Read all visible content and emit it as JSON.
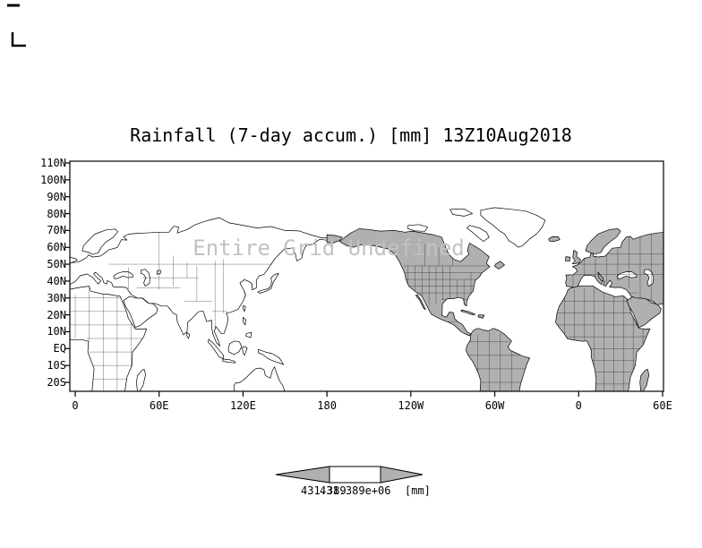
{
  "title": "Rainfall (7-day accum.) [mm] 13Z10Aug2018",
  "watermark": "Entire Grid Undefined",
  "axes": {
    "lat_labels": [
      "110N",
      "100N",
      "90N",
      "80N",
      "70N",
      "60N",
      "50N",
      "40N",
      "30N",
      "20N",
      "10N",
      "EQ",
      "10S",
      "20S"
    ],
    "lon_labels": [
      "0",
      "60E",
      "120E",
      "180",
      "120W",
      "60W",
      "0",
      "60E"
    ]
  },
  "colorbar": {
    "labels": [
      "431.389",
      "431.389e+06"
    ],
    "unit": "[mm]"
  },
  "colors": {
    "land_shaded": "#b0b0b0",
    "land_unshaded": "#ffffff",
    "outline": "#000000",
    "watermark": "#c2c2c2"
  },
  "chart_data": {
    "type": "map",
    "title": "Rainfall (7-day accum.) [mm] 13Z10Aug2018",
    "variable": "Rainfall (7-day accum.)",
    "unit": "[mm]",
    "valid_time": "13Z10Aug2018",
    "status": "Entire Grid Undefined",
    "projection": "latlon",
    "lat_ticks": [
      "110N",
      "100N",
      "90N",
      "80N",
      "70N",
      "60N",
      "50N",
      "40N",
      "30N",
      "20N",
      "10N",
      "EQ",
      "10S",
      "20S"
    ],
    "lon_ticks": [
      "0",
      "60E",
      "120E",
      "180",
      "120W",
      "60W",
      "0",
      "60E"
    ],
    "lon_range_deg_east": [
      0,
      420
    ],
    "lat_range_deg": [
      -20,
      110
    ],
    "colorbar_values": [
      "431.389",
      "431.389e+06"
    ],
    "grid_values": "undefined"
  }
}
